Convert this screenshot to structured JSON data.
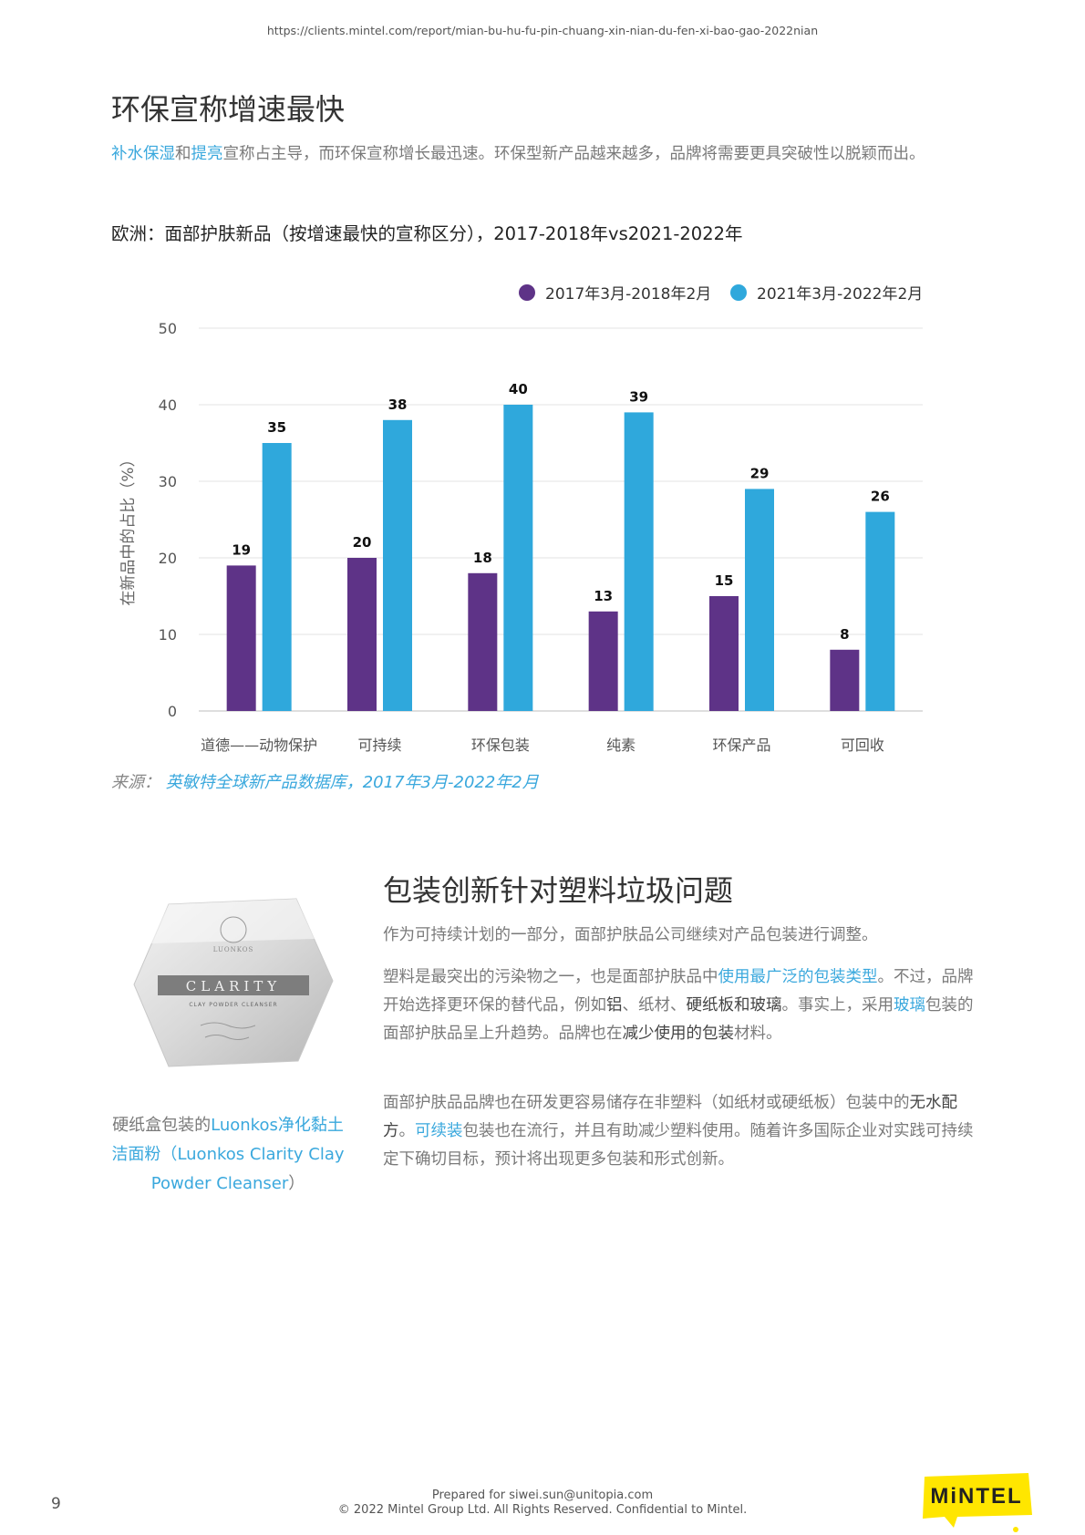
{
  "header": {
    "url": "https://clients.mintel.com/report/mian-bu-hu-fu-pin-chuang-xin-nian-du-fen-xi-bao-gao-2022nian"
  },
  "section1": {
    "title": "环保宣称增速最快",
    "intro": {
      "link1": "补水保湿",
      "t1": "和",
      "link2": "提亮",
      "t2": "宣称占主导，而环保宣称增长最迅速。环保型新产品越来越多，品牌将需要更具突破性以脱颖而出。"
    }
  },
  "chart_title": "欧洲：面部护肤新品（按增速最快的宣称区分），2017-2018年vs2021-2022年",
  "chart_data": {
    "type": "bar",
    "categories": [
      "道德——动物保护",
      "可持续",
      "环保包装",
      "纯素",
      "环保产品",
      "可回收"
    ],
    "series": [
      {
        "name": "2017年3月-2018年2月",
        "color": "#5e3387",
        "values": [
          19,
          20,
          18,
          13,
          15,
          8
        ]
      },
      {
        "name": "2021年3月-2022年2月",
        "color": "#2fa8dc",
        "values": [
          35,
          38,
          40,
          39,
          29,
          26
        ]
      }
    ],
    "ylabel": "在新品中的占比（%）",
    "ylim": [
      0,
      50
    ],
    "yticks": [
      0,
      10,
      20,
      30,
      40,
      50
    ],
    "legend": "top-right",
    "grid": true
  },
  "source": {
    "label": "来源：",
    "text": "英敏特全球新产品数据库，",
    "date": "2017年3月-2022年2月"
  },
  "section2": {
    "title": "包装创新针对塑料垃圾问题",
    "p1": "作为可持续计划的一部分，面部护肤品公司继续对产品包装进行调整。",
    "p2": {
      "a": "塑料是最突出的污染物之一，也是面部护肤品中",
      "link1": "使用最广泛的包装类型",
      "b": "。不过，品牌开始选择更环保的替代品，例如",
      "c": "铝",
      "d": "、纸材、",
      "e": "硬纸板和玻璃",
      "f": "。事实上，采用",
      "link2": "玻璃",
      "g": "包装的面部护肤品呈上升趋势。品牌也在",
      "h": "减少使用的包装",
      "i": "材料。"
    },
    "p3": {
      "a": "面部护肤品品牌也在研发更容易储存在非塑料（如纸材或硬纸板）包装中的",
      "b": "无水配方",
      "c": "。",
      "link1": "可续装",
      "d": "包装也在流行，并且有助减少塑料使用。随着许多国际企业对实践可持续定下确切目标，预计将出现更多包装和形式创新。"
    }
  },
  "product": {
    "brand": "LUONKOS",
    "name": "CLARITY",
    "subtitle": "CLAY POWDER CLEANSER",
    "caption": {
      "a": "硬纸盒包装的",
      "b": "Luonkos",
      "c": "净化黏土洁面粉（",
      "d": "Luonkos Clarity Clay Powder Cleanser",
      "e": "）"
    }
  },
  "footer": {
    "prepared": "Prepared for siwei.sun@unitopia.com",
    "copyright": "© 2022 Mintel Group Ltd. All Rights Reserved. Confidential to Mintel.",
    "page": "9",
    "logo": "MiNTEL",
    "colors": {
      "logo_bg": "#ffe600",
      "logo_text": "#222222"
    }
  }
}
